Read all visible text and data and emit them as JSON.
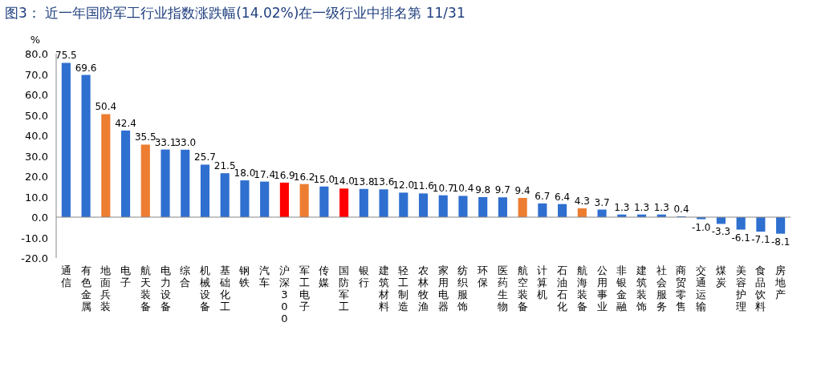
{
  "chart_data": {
    "type": "bar",
    "title": "图3： 近一年国防军工行业指数涨跌幅(14.02%)在一级行业中排名第 11/31",
    "ylabel": "%",
    "categories": [
      "通信",
      "有色金属",
      "地面兵装",
      "电子",
      "航天装备",
      "电力设备",
      "综合",
      "机械设备",
      "基础化工",
      "钢铁",
      "汽车",
      "沪深300",
      "军工电子",
      "传媒",
      "国防军工",
      "银行",
      "建筑材料",
      "轻工制造",
      "农林牧渔",
      "家用电器",
      "纺织服饰",
      "环保",
      "医药生物",
      "航空装备",
      "计算机",
      "石油石化",
      "航海装备",
      "公用事业",
      "非银金融",
      "建筑装饰",
      "社会服务",
      "商贸零售",
      "交通运输",
      "煤炭",
      "美容护理",
      "食品饮料",
      "房地产"
    ],
    "values": [
      75.5,
      69.6,
      50.4,
      42.4,
      35.5,
      33.1,
      33.0,
      25.7,
      21.5,
      18.0,
      17.4,
      16.9,
      16.2,
      15.0,
      14.0,
      13.8,
      13.6,
      12.0,
      11.6,
      10.7,
      10.4,
      9.8,
      9.7,
      9.4,
      6.7,
      6.4,
      4.3,
      3.7,
      1.3,
      1.3,
      1.3,
      0.4,
      -1.0,
      -3.3,
      -6.1,
      -7.1,
      -8.1
    ],
    "value_labels": [
      "75.5",
      "69.6",
      "50.4",
      "42.4",
      "35.5",
      "33.1",
      "33.0",
      "25.7",
      "21.5",
      "18.0",
      "17.4",
      "16.9",
      "16.2",
      "15.0",
      "14.0",
      "13.8",
      "13.6",
      "12.0",
      "11.6",
      "10.7",
      "10.4",
      "9.8",
      "9.7",
      "9.4",
      "6.7",
      "6.4",
      "4.3",
      "3.7",
      "1.3",
      "1.3",
      "1.3",
      "0.4",
      "-1.0",
      "-3.3",
      "-6.1",
      "-7.1",
      "-8.1"
    ],
    "colors": [
      "#2e6fd0",
      "#2e6fd0",
      "#ed7d31",
      "#2e6fd0",
      "#ed7d31",
      "#2e6fd0",
      "#2e6fd0",
      "#2e6fd0",
      "#2e6fd0",
      "#2e6fd0",
      "#2e6fd0",
      "#ff0000",
      "#ed7d31",
      "#2e6fd0",
      "#ff0000",
      "#2e6fd0",
      "#2e6fd0",
      "#2e6fd0",
      "#2e6fd0",
      "#2e6fd0",
      "#2e6fd0",
      "#2e6fd0",
      "#2e6fd0",
      "#ed7d31",
      "#2e6fd0",
      "#2e6fd0",
      "#ed7d31",
      "#2e6fd0",
      "#2e6fd0",
      "#2e6fd0",
      "#2e6fd0",
      "#2e6fd0",
      "#2e6fd0",
      "#2e6fd0",
      "#2e6fd0",
      "#2e6fd0",
      "#2e6fd0"
    ],
    "ylim": [
      -20,
      80
    ],
    "yticks": [
      {
        "value": -20,
        "label": "-20.0"
      },
      {
        "value": -10,
        "label": "-10.0"
      },
      {
        "value": 0,
        "label": "0.0"
      },
      {
        "value": 10,
        "label": "10.0"
      },
      {
        "value": 20,
        "label": "20.0"
      },
      {
        "value": 30,
        "label": "30.0"
      },
      {
        "value": 40,
        "label": "40.0"
      },
      {
        "value": 50,
        "label": "50.0"
      },
      {
        "value": 60,
        "label": "60.0"
      },
      {
        "value": 70,
        "label": "70.0"
      },
      {
        "value": 80,
        "label": "80.0"
      }
    ]
  }
}
